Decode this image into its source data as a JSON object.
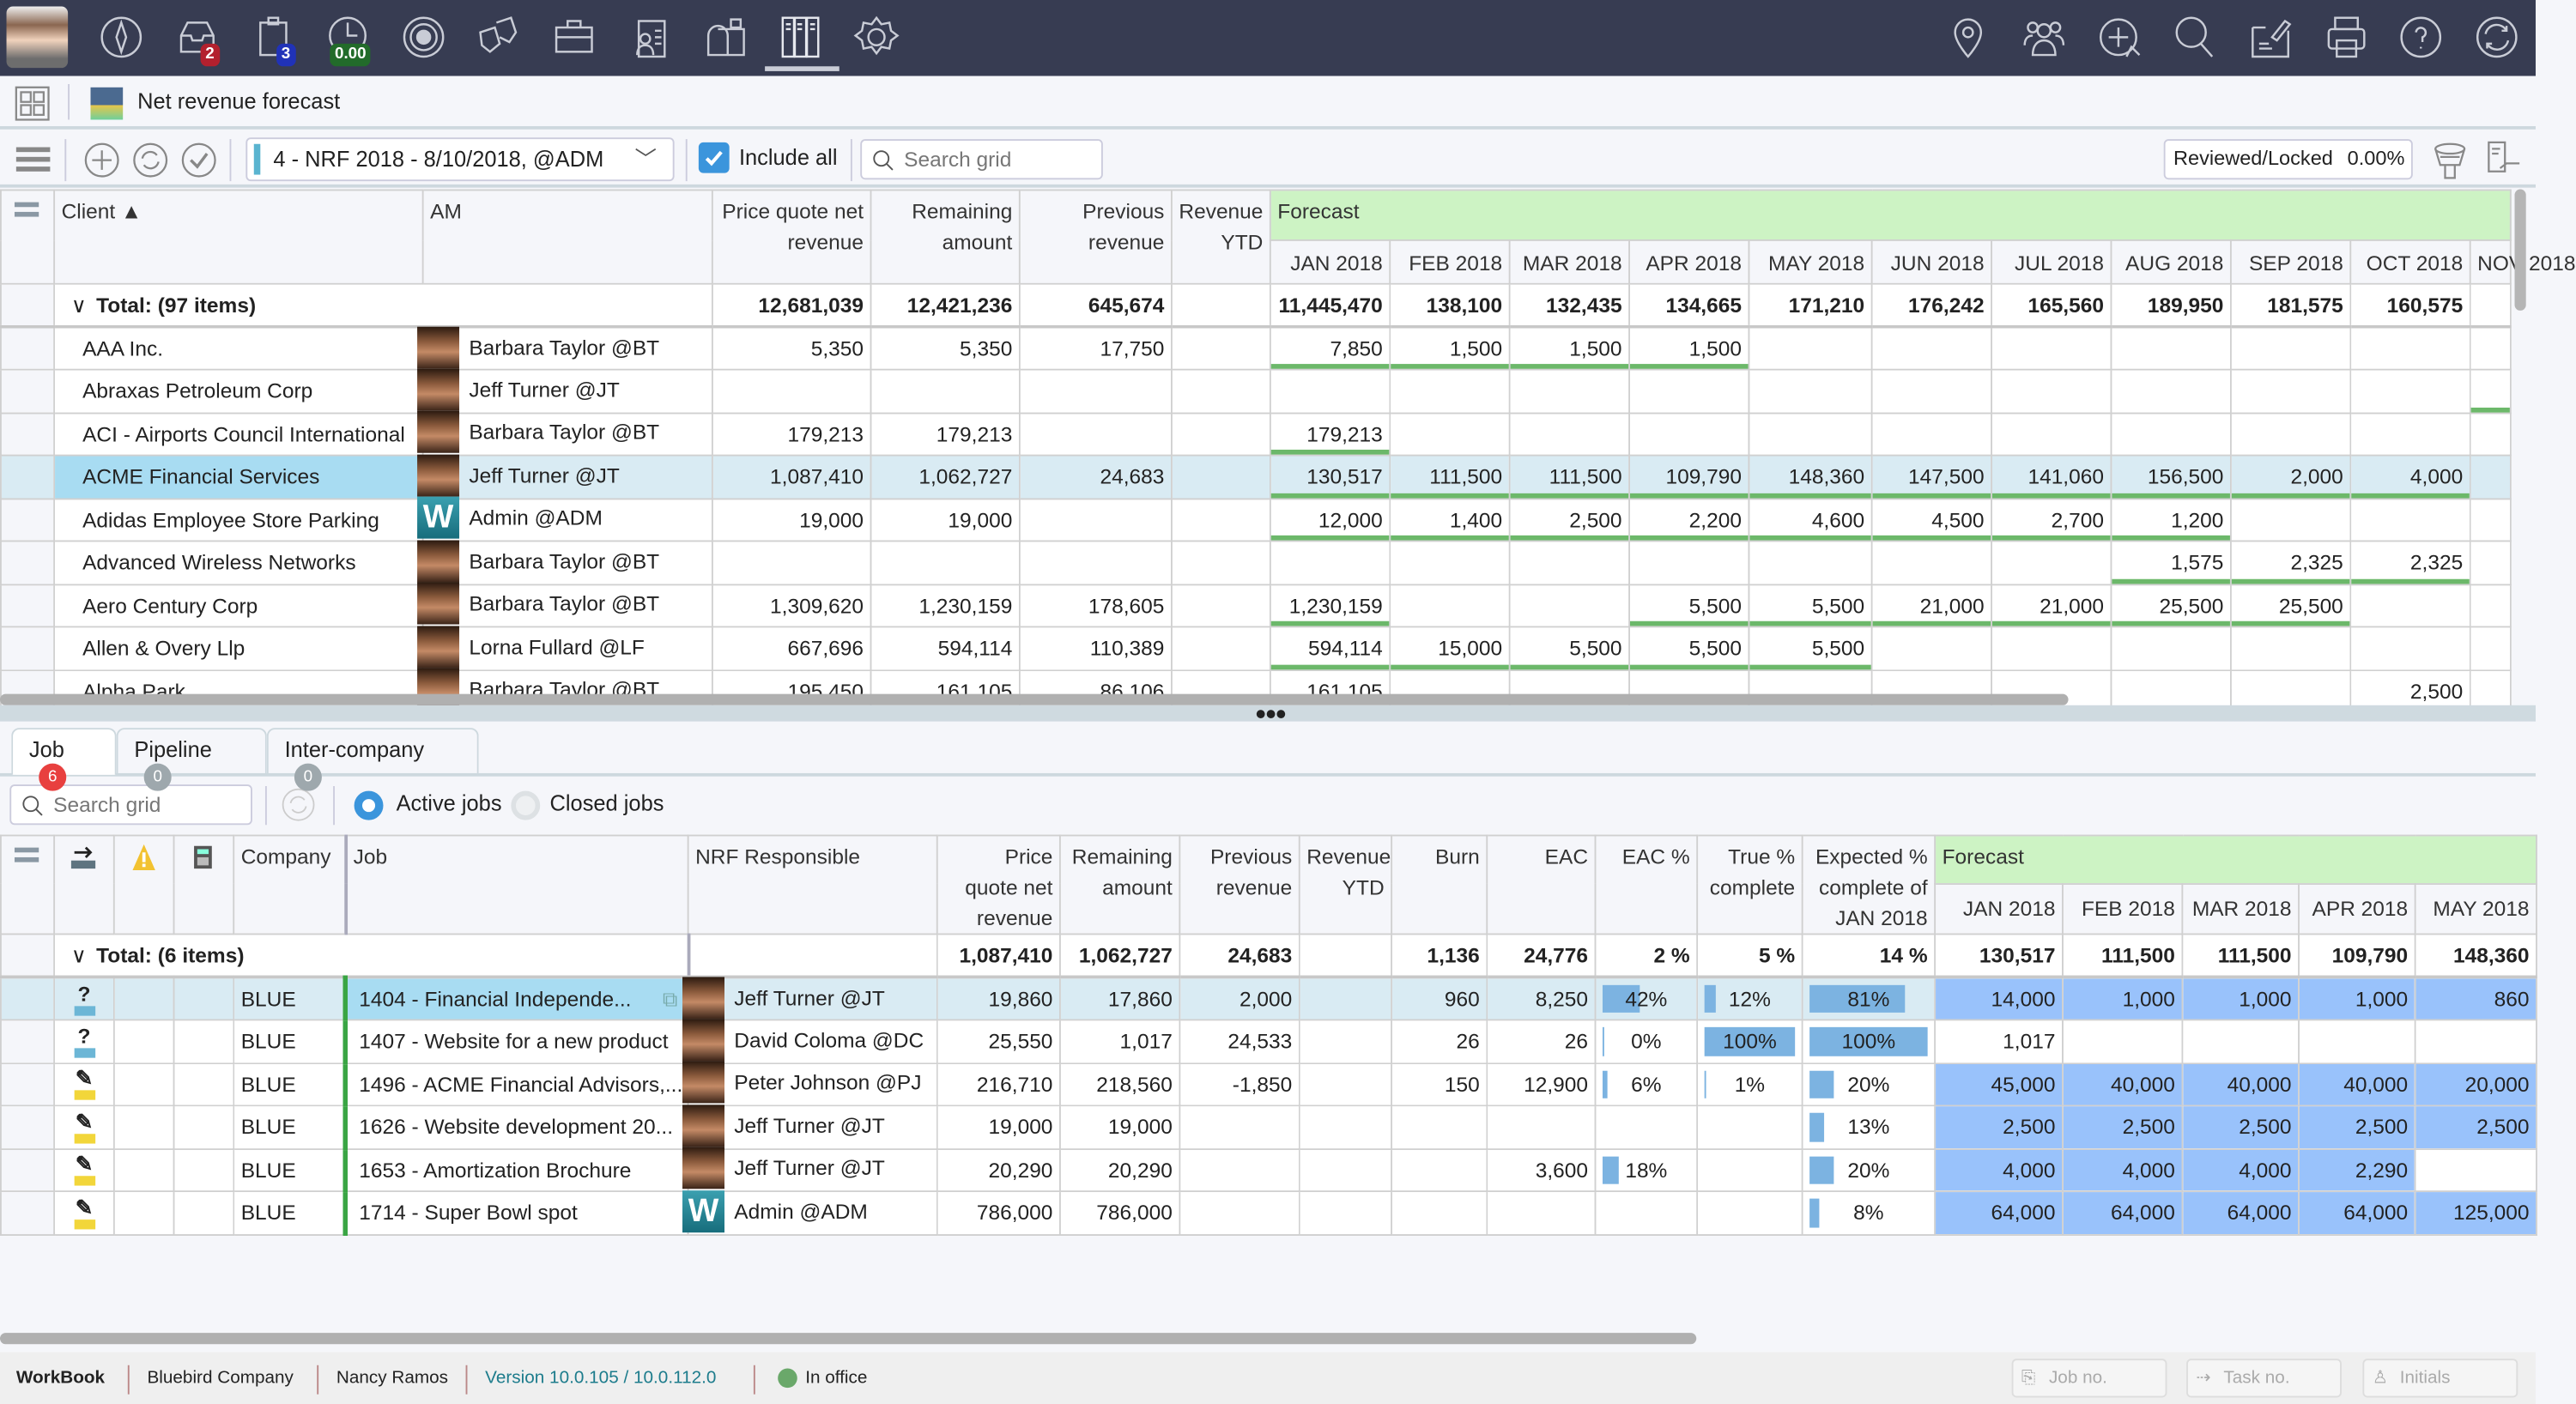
{
  "nav": {
    "left_icons": [
      "compass-icon",
      "inbox-icon",
      "clipboard-icon",
      "time-icon",
      "target-icon",
      "theater-masks-icon",
      "briefcase-icon",
      "contacts-clipboard-icon",
      "mailbox-icon",
      "workbook-binders-icon",
      "gear-icon"
    ],
    "right_icons": [
      "location-pin-icon",
      "team-icon",
      "add-reply-icon",
      "search-icon",
      "sign-document-icon",
      "printer-icon",
      "help-icon",
      "sync-icon"
    ],
    "active_icon": "workbook-binders-icon",
    "badges": {
      "inbox": "2",
      "clipboard": "3",
      "time": "0.00"
    },
    "badge_colors": {
      "inbox": "#b3202e",
      "clipboard": "#2032b8",
      "time": "#226b2a"
    }
  },
  "header": {
    "title": "Net revenue forecast"
  },
  "toolbar": {
    "forecast_select": "4 - NRF 2018 - 8/10/2018, @ADM",
    "include_all_label": "Include all",
    "include_all_checked": true,
    "search_placeholder": "Search grid",
    "reviewed_label": "Reviewed/Locked",
    "reviewed_value": "0.00%"
  },
  "upper_grid": {
    "headers": {
      "client": "Client ▲",
      "am": "AM",
      "price": "Price quote net revenue",
      "remaining": "Remaining amount",
      "previous": "Previous revenue",
      "revytd": "Revenue YTD",
      "forecast": "Forecast"
    },
    "months": [
      "JAN 2018",
      "FEB 2018",
      "MAR 2018",
      "APR 2018",
      "MAY 2018",
      "JUN 2018",
      "JUL 2018",
      "AUG 2018",
      "SEP 2018",
      "OCT 2018",
      "NOV 2018"
    ],
    "total": {
      "label": "Total: (97 items)",
      "price": "12,681,039",
      "remaining": "12,421,236",
      "previous": "645,674",
      "revytd": "",
      "forecast": [
        "11,445,470",
        "138,100",
        "132,435",
        "134,665",
        "171,210",
        "176,242",
        "165,560",
        "189,950",
        "181,575",
        "160,575",
        ""
      ]
    },
    "rows": [
      {
        "client": "AAA Inc.",
        "am": "Barbara Taylor @BT",
        "avatar": "",
        "price": "5,350",
        "remaining": "5,350",
        "previous": "17,750",
        "revytd": "",
        "forecast": [
          "7,850",
          "1,500",
          "1,500",
          "1,500",
          "",
          "",
          "",
          "",
          "",
          "",
          ""
        ]
      },
      {
        "client": "Abraxas Petroleum Corp",
        "am": "Jeff Turner @JT",
        "avatar": "",
        "price": "",
        "remaining": "",
        "previous": "",
        "revytd": "",
        "forecast": [
          "",
          "",
          "",
          "",
          "",
          "",
          "",
          "",
          "",
          "",
          ""
        ],
        "marked": [
          10
        ]
      },
      {
        "client": "ACI - Airports Council International",
        "am": "Barbara Taylor @BT",
        "avatar": "",
        "price": "179,213",
        "remaining": "179,213",
        "previous": "",
        "revytd": "",
        "forecast": [
          "179,213",
          "",
          "",
          "",
          "",
          "",
          "",
          "",
          "",
          "",
          ""
        ]
      },
      {
        "client": "ACME Financial Services",
        "am": "Jeff Turner @JT",
        "avatar": "",
        "selected": true,
        "price": "1,087,410",
        "remaining": "1,062,727",
        "previous": "24,683",
        "revytd": "",
        "forecast": [
          "130,517",
          "111,500",
          "111,500",
          "109,790",
          "148,360",
          "147,500",
          "141,060",
          "156,500",
          "2,000",
          "4,000",
          ""
        ]
      },
      {
        "client": "Adidas Employee Store Parking",
        "am": "Admin @ADM",
        "avatar": "W",
        "price": "19,000",
        "remaining": "19,000",
        "previous": "",
        "revytd": "",
        "forecast": [
          "12,000",
          "1,400",
          "2,500",
          "2,200",
          "4,600",
          "4,500",
          "2,700",
          "1,200",
          "",
          "",
          ""
        ]
      },
      {
        "client": "Advanced Wireless Networks",
        "am": "Barbara Taylor @BT",
        "avatar": "",
        "price": "",
        "remaining": "",
        "previous": "",
        "revytd": "",
        "forecast": [
          "",
          "",
          "",
          "",
          "",
          "",
          "",
          "1,575",
          "2,325",
          "2,325",
          ""
        ]
      },
      {
        "client": "Aero Century Corp",
        "am": "Barbara Taylor @BT",
        "avatar": "",
        "price": "1,309,620",
        "remaining": "1,230,159",
        "previous": "178,605",
        "revytd": "",
        "forecast": [
          "1,230,159",
          "",
          "",
          "5,500",
          "5,500",
          "21,000",
          "21,000",
          "25,500",
          "25,500",
          "",
          ""
        ]
      },
      {
        "client": "Allen & Overy Llp",
        "am": "Lorna Fullard @LF",
        "avatar": "",
        "price": "667,696",
        "remaining": "594,114",
        "previous": "110,389",
        "revytd": "",
        "forecast": [
          "594,114",
          "15,000",
          "5,500",
          "5,500",
          "5,500",
          "",
          "",
          "",
          "",
          "",
          ""
        ]
      },
      {
        "client": "Alpha Park",
        "am": "Barbara Taylor @BT",
        "avatar": "",
        "price": "195,450",
        "remaining": "161,105",
        "previous": "86,106",
        "revytd": "",
        "forecast": [
          "161,105",
          "",
          "",
          "",
          "",
          "",
          "",
          "",
          "",
          "2,500",
          ""
        ]
      }
    ]
  },
  "lower": {
    "tabs": [
      {
        "label": "Job",
        "count": "6",
        "active": true
      },
      {
        "label": "Pipeline",
        "count": "0"
      },
      {
        "label": "Inter-company",
        "count": "0"
      }
    ],
    "search_placeholder": "Search grid",
    "active_jobs_label": "Active jobs",
    "closed_jobs_label": "Closed jobs",
    "filter_selected": "active",
    "headers": {
      "company": "Company",
      "job": "Job",
      "nrf": "NRF Responsible",
      "price": "Price quote net revenue",
      "remaining": "Remaining amount",
      "previous": "Previous revenue",
      "revytd": "Revenue YTD",
      "burn": "Burn",
      "eac": "EAC",
      "eacpct": "EAC %",
      "truepct": "True % complete",
      "exppct": "Expected % complete of JAN 2018",
      "forecast": "Forecast"
    },
    "months": [
      "JAN 2018",
      "FEB 2018",
      "MAR 2018",
      "APR 2018",
      "MAY 2018"
    ],
    "total": {
      "label": "Total: (6 items)",
      "price": "1,087,410",
      "remaining": "1,062,727",
      "previous": "24,683",
      "revytd": "",
      "burn": "1,136",
      "eac": "24,776",
      "eacpct": "2 %",
      "truepct": "5 %",
      "exppct": "14 %",
      "forecast": [
        "130,517",
        "111,500",
        "111,500",
        "109,790",
        "148,360"
      ]
    },
    "rows": [
      {
        "status": "?",
        "status_type": "question",
        "company": "BLUE",
        "job": "1404 - Financial Independe...",
        "has_briefcase": true,
        "nrf": "Jeff Turner @JT",
        "avatar": "",
        "selected": true,
        "price": "19,860",
        "remaining": "17,860",
        "previous": "2,000",
        "revytd": "",
        "burn": "960",
        "eac": "8,250",
        "eacpct": "42%",
        "truepct": "12%",
        "exppct": "81%",
        "forecast": [
          "14,000",
          "1,000",
          "1,000",
          "1,000",
          "860"
        ],
        "forecast_shaded": true
      },
      {
        "status": "?",
        "status_type": "question",
        "company": "BLUE",
        "job": "1407 - Website for a new product",
        "nrf": "David Coloma @DC",
        "avatar": "",
        "price": "25,550",
        "remaining": "1,017",
        "previous": "24,533",
        "revytd": "",
        "burn": "26",
        "eac": "26",
        "eacpct": "0%",
        "truepct": "100%",
        "exppct": "100%",
        "forecast": [
          "1,017",
          "",
          "",
          "",
          ""
        ],
        "forecast_shaded": false
      },
      {
        "status": "✎",
        "status_type": "pencil",
        "company": "BLUE",
        "job": "1496 - ACME Financial Advisors,...",
        "nrf": "Peter Johnson @PJ",
        "avatar": "",
        "price": "216,710",
        "remaining": "218,560",
        "previous": "-1,850",
        "revytd": "",
        "burn": "150",
        "eac": "12,900",
        "eacpct": "6%",
        "truepct": "1%",
        "exppct": "20%",
        "forecast": [
          "45,000",
          "40,000",
          "40,000",
          "40,000",
          "20,000"
        ],
        "forecast_shaded": true
      },
      {
        "status": "✎",
        "status_type": "pencil",
        "company": "BLUE",
        "job": "1626 - Website development 20...",
        "nrf": "Jeff Turner @JT",
        "avatar": "",
        "price": "19,000",
        "remaining": "19,000",
        "previous": "",
        "revytd": "",
        "burn": "",
        "eac": "",
        "eacpct": "",
        "truepct": "",
        "exppct": "13%",
        "forecast": [
          "2,500",
          "2,500",
          "2,500",
          "2,500",
          "2,500"
        ],
        "forecast_shaded": true
      },
      {
        "status": "✎",
        "status_type": "pencil",
        "company": "BLUE",
        "job": "1653 - Amortization Brochure",
        "nrf": "Jeff Turner @JT",
        "avatar": "",
        "price": "20,290",
        "remaining": "20,290",
        "previous": "",
        "revytd": "",
        "burn": "",
        "eac": "3,600",
        "eacpct": "18%",
        "truepct": "",
        "exppct": "20%",
        "forecast": [
          "4,000",
          "4,000",
          "4,000",
          "2,290",
          ""
        ],
        "forecast_shaded": true
      },
      {
        "status": "✎",
        "status_type": "pencil",
        "company": "BLUE",
        "job": "1714 - Super Bowl spot",
        "nrf": "Admin @ADM",
        "avatar": "W",
        "price": "786,000",
        "remaining": "786,000",
        "previous": "",
        "revytd": "",
        "burn": "",
        "eac": "",
        "eacpct": "",
        "truepct": "",
        "exppct": "8%",
        "forecast": [
          "64,000",
          "64,000",
          "64,000",
          "64,000",
          "125,000"
        ],
        "forecast_shaded": true
      }
    ]
  },
  "status_bar": {
    "app": "WorkBook",
    "company": "Bluebird Company",
    "user": "Nancy Ramos",
    "version": "Version 10.0.105 / 10.0.112.0",
    "presence": "In office",
    "presence_color": "#6aa86a",
    "job_no_placeholder": "Job no.",
    "task_no_placeholder": "Task no.",
    "initials_placeholder": "Initials"
  }
}
